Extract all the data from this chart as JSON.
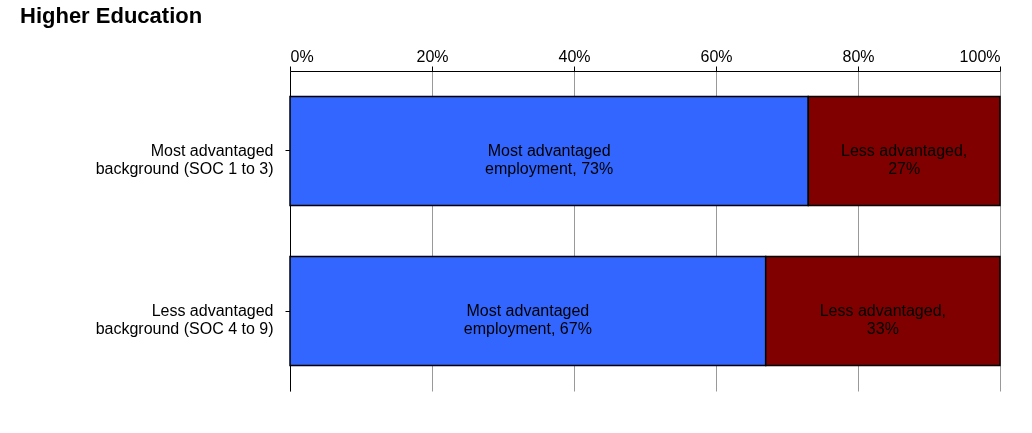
{
  "chart_data": {
    "type": "bar",
    "orientation": "horizontal",
    "stacked": true,
    "title": "Higher Education",
    "categories": [
      "Most advantaged background (SOC 1 to 3)",
      "Less advantaged background (SOC 4 to 9)"
    ],
    "series": [
      {
        "color": "#3366ff",
        "values": [
          73,
          67
        ],
        "value_labels": [
          "Most advantaged employment, 73%",
          "Most advantaged employment, 67%"
        ]
      },
      {
        "color": "#800000",
        "values": [
          27,
          33
        ],
        "value_labels": [
          "Less advantaged, 27%",
          "Less advantaged, 33%"
        ]
      }
    ],
    "xlim": [
      0,
      100
    ],
    "xticks": [
      {
        "value": 0,
        "label": "0%"
      },
      {
        "value": 20,
        "label": "20%"
      },
      {
        "value": 40,
        "label": "40%"
      },
      {
        "value": 60,
        "label": "60%"
      },
      {
        "value": 80,
        "label": "80%"
      },
      {
        "value": 100,
        "label": "100%"
      }
    ],
    "grid": "x"
  }
}
